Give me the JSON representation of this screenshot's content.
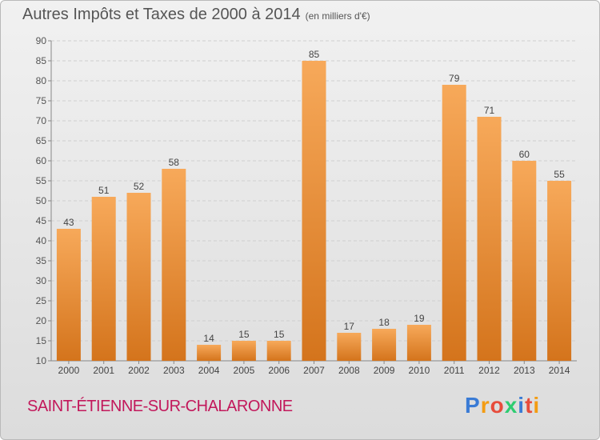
{
  "title": "Autres Impôts et Taxes de 2000 à 2014",
  "unit": "(en milliers d'€)",
  "commune": "SAINT-ÉTIENNE-SUR-CHALARONNE",
  "logo": {
    "letters": [
      "P",
      "r",
      "o",
      "x",
      "i",
      "t",
      "i"
    ],
    "colors": [
      "#3a7bd5",
      "#f39c12",
      "#e74c3c",
      "#2ecc71",
      "#3a7bd5",
      "#e74c3c",
      "#f39c12"
    ]
  },
  "colors": {
    "bar_light": "#f7a95a",
    "bar_dark": "#d4741c",
    "grid": "#cfcfcf"
  },
  "chart_data": {
    "type": "bar",
    "categories": [
      "2000",
      "2001",
      "2002",
      "2003",
      "2004",
      "2005",
      "2006",
      "2007",
      "2008",
      "2009",
      "2010",
      "2011",
      "2012",
      "2013",
      "2014"
    ],
    "values": [
      43,
      51,
      52,
      58,
      14,
      15,
      15,
      85,
      17,
      18,
      19,
      79,
      71,
      60,
      55
    ],
    "labels": [
      "43",
      "51",
      "52",
      "58",
      "14",
      "15",
      "15",
      "85",
      "17",
      "18",
      "19",
      "79",
      "71",
      "60",
      "55"
    ],
    "ylim": [
      10,
      90
    ],
    "yticks": [
      "10",
      "15",
      "20",
      "25",
      "30",
      "35",
      "40",
      "45",
      "50",
      "55",
      "60",
      "65",
      "70",
      "75",
      "80",
      "85",
      "90"
    ],
    "grid": true
  }
}
